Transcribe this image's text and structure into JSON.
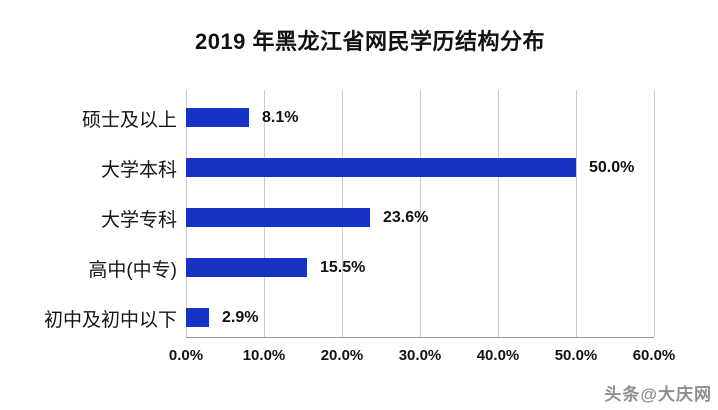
{
  "title": "2019 年黑龙江省网民学历结构分布",
  "watermark": "头条@大庆网",
  "chart_data": {
    "type": "bar",
    "orientation": "horizontal",
    "title": "2019 年黑龙江省网民学历结构分布",
    "categories": [
      "硕士及以上",
      "大学本科",
      "大学专科",
      "高中(中专)",
      "初中及初中以下"
    ],
    "values": [
      8.1,
      50.0,
      23.6,
      15.5,
      2.9
    ],
    "value_labels": [
      "8.1%",
      "50.0%",
      "23.6%",
      "15.5%",
      "2.9%"
    ],
    "x_ticks": [
      "0.0%",
      "10.0%",
      "20.0%",
      "30.0%",
      "40.0%",
      "50.0%",
      "60.0%"
    ],
    "xlim": [
      0,
      60
    ],
    "grid": true,
    "legend": false,
    "bar_color": "#1733c4",
    "gridline_color": "#cccccc",
    "axis_line_color": "#9a9a9a",
    "text_color": "#111111"
  }
}
